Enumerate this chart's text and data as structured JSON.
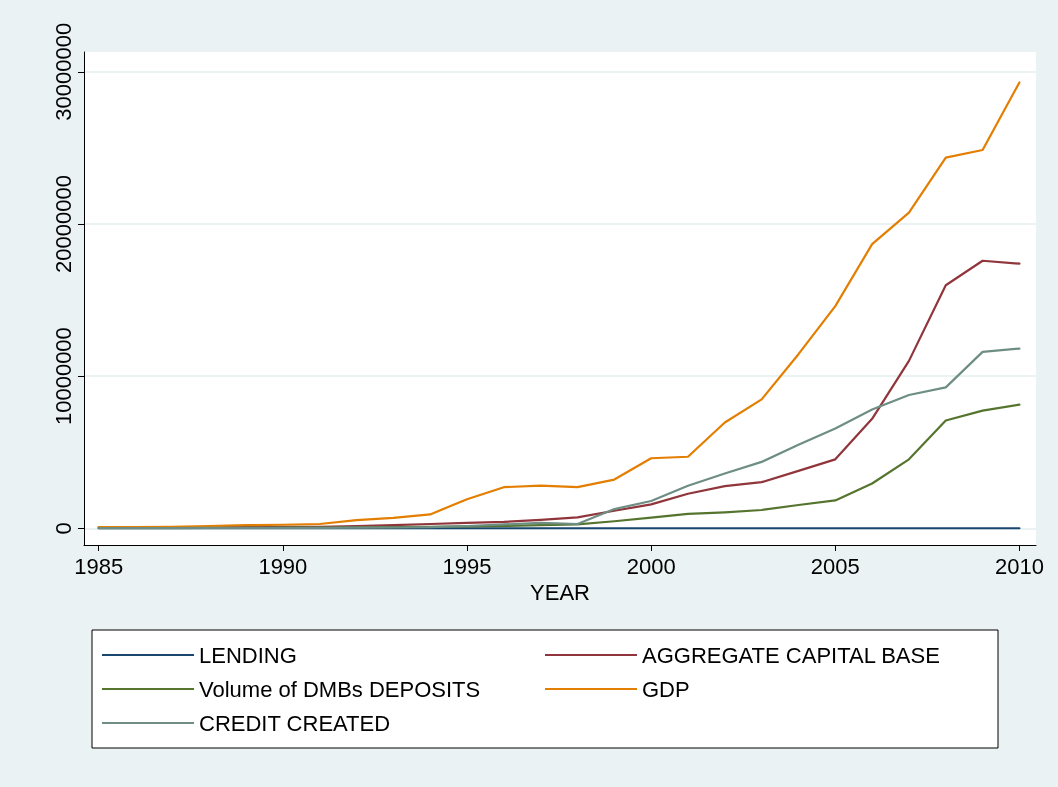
{
  "chart_data": {
    "type": "line",
    "xlabel": "YEAR",
    "x": [
      1985,
      1986,
      1987,
      1988,
      1989,
      1990,
      1991,
      1992,
      1993,
      1994,
      1995,
      1996,
      1997,
      1998,
      1999,
      2000,
      2001,
      2002,
      2003,
      2004,
      2005,
      2006,
      2007,
      2008,
      2009,
      2010
    ],
    "series": [
      {
        "name": "LENDING",
        "color": "#1a476f",
        "values": [
          0,
          0,
          0,
          0,
          0,
          0,
          0,
          0,
          0,
          0,
          0,
          0,
          0,
          0,
          0,
          0,
          0,
          0,
          0,
          0,
          0,
          0,
          0,
          0,
          0,
          0
        ]
      },
      {
        "name": "AGGREGATE CAPITAL BASE",
        "color": "#90353b",
        "values": [
          50000,
          50000,
          60000,
          70000,
          80000,
          90000,
          100000,
          150000,
          200000,
          280000,
          350000,
          420000,
          550000,
          720000,
          1150000,
          1570000,
          2270000,
          2770000,
          3030000,
          3770000,
          4530000,
          7190000,
          11000000,
          15970000,
          17580000,
          17390000
        ]
      },
      {
        "name": "Volume of DMBs DEPOSITS",
        "color": "#55752f",
        "values": [
          20000,
          20000,
          20000,
          30000,
          30000,
          40000,
          50000,
          60000,
          80000,
          100000,
          120000,
          150000,
          200000,
          260000,
          460000,
          700000,
          940000,
          1050000,
          1200000,
          1530000,
          1830000,
          2940000,
          4530000,
          7080000,
          7730000,
          8130000
        ]
      },
      {
        "name": "GDP",
        "color": "#e37e00",
        "values": [
          70000,
          70000,
          100000,
          140000,
          200000,
          230000,
          280000,
          540000,
          680000,
          910000,
          1910000,
          2700000,
          2800000,
          2700000,
          3200000,
          4600000,
          4700000,
          6950000,
          8470000,
          11440000,
          14600000,
          18670000,
          20740000,
          24360000,
          24860000,
          29300000
        ]
      },
      {
        "name": "CREDIT CREATED",
        "color": "#6e8e84",
        "values": [
          10000,
          10000,
          10000,
          20000,
          20000,
          30000,
          30000,
          40000,
          50000,
          70000,
          150000,
          250000,
          350000,
          280000,
          1260000,
          1790000,
          2790000,
          3600000,
          4360000,
          5490000,
          6560000,
          7800000,
          8760000,
          9260000,
          11590000,
          11810000
        ]
      }
    ],
    "xlim": [
      1984.6,
      2010.45
    ],
    "xticks": [
      1985,
      1990,
      1995,
      2000,
      2005,
      2010
    ],
    "ylim": [
      -1100000,
      31300000
    ],
    "yticks": [
      0,
      10000000,
      20000000,
      30000000
    ],
    "grid": "y",
    "legend": "bottom",
    "marker": "none",
    "line_style": "solid"
  }
}
